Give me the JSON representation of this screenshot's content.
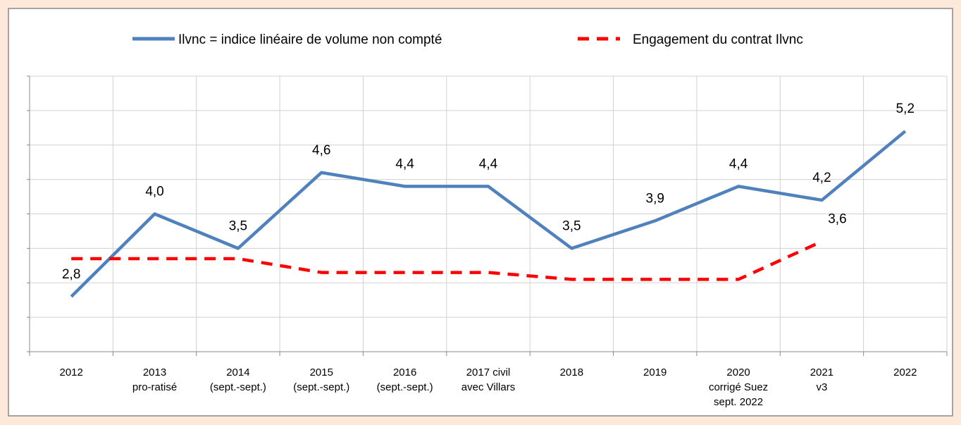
{
  "chart_data": {
    "type": "line",
    "categories": [
      [
        "2012"
      ],
      [
        "2013",
        "pro-ratisé"
      ],
      [
        "2014",
        "(sept.-sept.)"
      ],
      [
        "2015",
        "(sept.-sept.)"
      ],
      [
        "2016",
        "(sept.-sept.)"
      ],
      [
        "2017 civil",
        "avec Villars"
      ],
      [
        "2018"
      ],
      [
        "2019"
      ],
      [
        "2020",
        "corrigé Suez",
        "sept. 2022"
      ],
      [
        "2021",
        "v3"
      ],
      [
        "2022"
      ]
    ],
    "series": [
      {
        "name": "Ilvnc = indice linéaire de volume non compté",
        "color": "#4f81bd",
        "dashed": false,
        "values": [
          2.8,
          4.0,
          3.5,
          4.6,
          4.4,
          4.4,
          3.5,
          3.9,
          4.4,
          4.2,
          5.2
        ],
        "value_labels": [
          "2,8",
          "4,0",
          "3,5",
          "4,6",
          "4,4",
          "4,4",
          "3,5",
          "3,9",
          "4,4",
          "4,2",
          "5,2"
        ]
      },
      {
        "name": "Engagement du contrat Ilvnc",
        "color": "#ff0000",
        "dashed": true,
        "values": [
          3.35,
          3.35,
          3.35,
          3.15,
          3.15,
          3.15,
          3.05,
          3.05,
          3.05,
          3.6,
          null
        ],
        "value_labels": [
          null,
          null,
          null,
          null,
          null,
          null,
          null,
          null,
          null,
          "3,6",
          null
        ]
      }
    ],
    "ylim": [
      2,
      6
    ],
    "yticks": [
      2,
      2.5,
      3,
      3.5,
      4,
      4.5,
      5,
      5.5,
      6
    ],
    "grid": true,
    "legend": "top"
  }
}
